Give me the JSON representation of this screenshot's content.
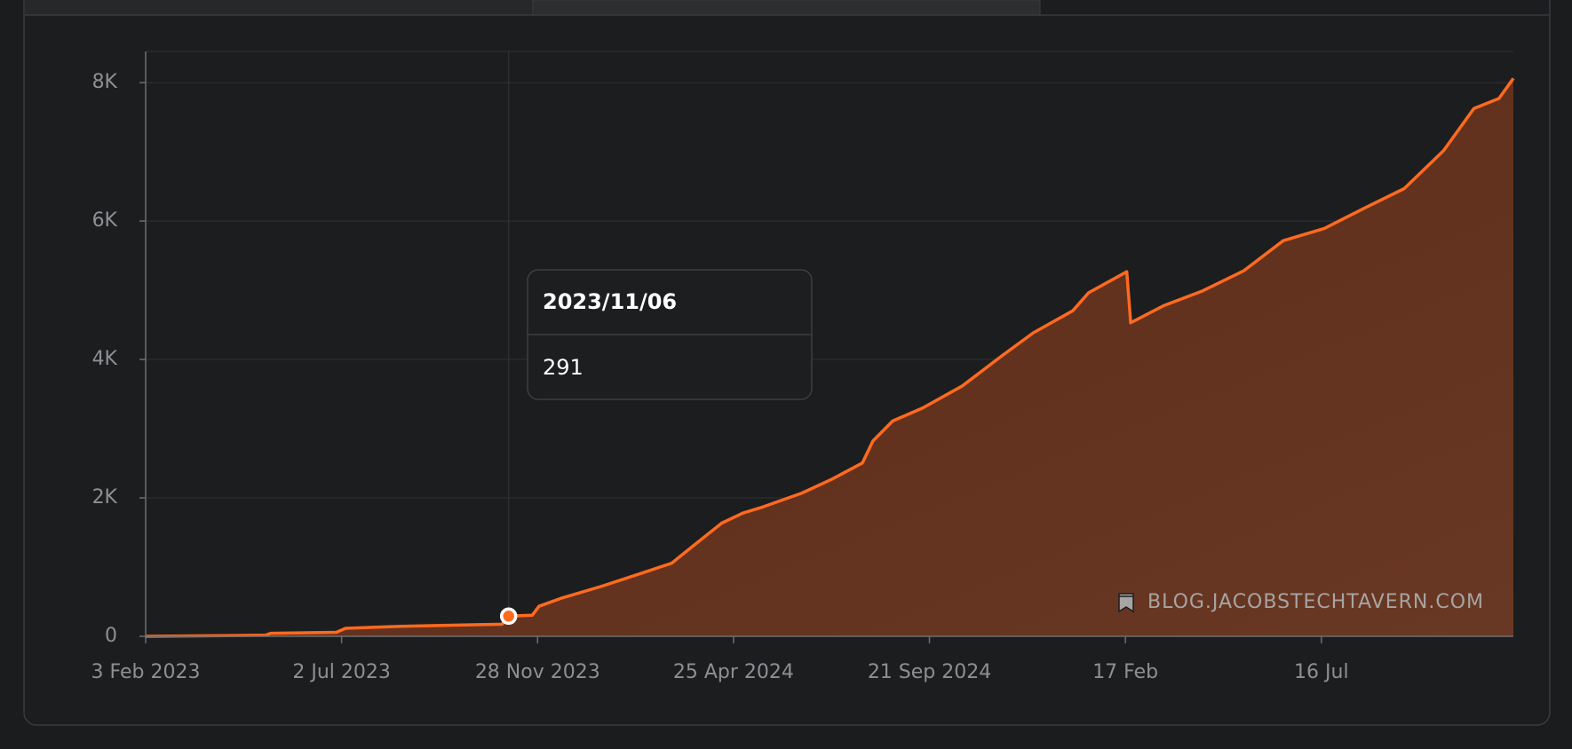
{
  "chart_data": {
    "type": "area",
    "series": [
      {
        "color": "#ff6a1f",
        "x": [
          "2023-02-03",
          "2023-05-05",
          "2023-05-09",
          "2023-06-28",
          "2023-07-05",
          "2023-08-16",
          "2023-11-01",
          "2023-11-06",
          "2023-11-24",
          "2023-11-29",
          "2023-12-16",
          "2024-01-16",
          "2024-02-15",
          "2024-03-09",
          "2024-03-25",
          "2024-04-16",
          "2024-05-02",
          "2024-05-17",
          "2024-06-16",
          "2024-07-09",
          "2024-08-01",
          "2024-08-09",
          "2024-08-24",
          "2024-09-16",
          "2024-10-16",
          "2024-11-15",
          "2024-12-09",
          "2025-01-08",
          "2025-01-20",
          "2025-02-18",
          "2025-02-21",
          "2025-03-18",
          "2025-04-17",
          "2025-05-18",
          "2025-06-17",
          "2025-07-18",
          "2025-08-17",
          "2025-09-17",
          "2025-10-17",
          "2025-11-09",
          "2025-11-28",
          "2025-12-09"
        ],
        "values": [
          0,
          15,
          43,
          58,
          116,
          145,
          174,
          291,
          304,
          434,
          550,
          724,
          912,
          1057,
          1302,
          1635,
          1780,
          1867,
          2069,
          2272,
          2504,
          2822,
          3111,
          3300,
          3618,
          4052,
          4385,
          4703,
          4964,
          5268,
          4530,
          4776,
          4993,
          5282,
          5716,
          5890,
          6179,
          6469,
          7019,
          7627,
          7771,
          8061
        ]
      }
    ],
    "xlim": [
      "2023-02-03",
      "2025-12-09"
    ],
    "xticks": [
      {
        "value": "2023-02-03",
        "label": "3 Feb 2023"
      },
      {
        "value": "2023-07-02",
        "label": "2 Jul 2023"
      },
      {
        "value": "2023-11-28",
        "label": "28 Nov 2023"
      },
      {
        "value": "2024-04-25",
        "label": "25 Apr 2024"
      },
      {
        "value": "2024-09-21",
        "label": "21 Sep 2024"
      },
      {
        "value": "2025-02-17",
        "label": "17 Feb"
      },
      {
        "value": "2025-07-16",
        "label": "16 Jul"
      }
    ],
    "ylim": [
      0,
      8450
    ],
    "yticks": [
      0,
      {
        "value": 2000,
        "label": "2K"
      },
      {
        "value": 4000,
        "label": "4K"
      },
      {
        "value": 6000,
        "label": "6K"
      },
      {
        "value": 8000,
        "label": "8K"
      }
    ],
    "grid": true,
    "annotation": "BLOG.JACOBSTECHTAVERN.COM",
    "tooltip": {
      "date": "2023/11/06",
      "value": "291",
      "point": 7
    }
  }
}
